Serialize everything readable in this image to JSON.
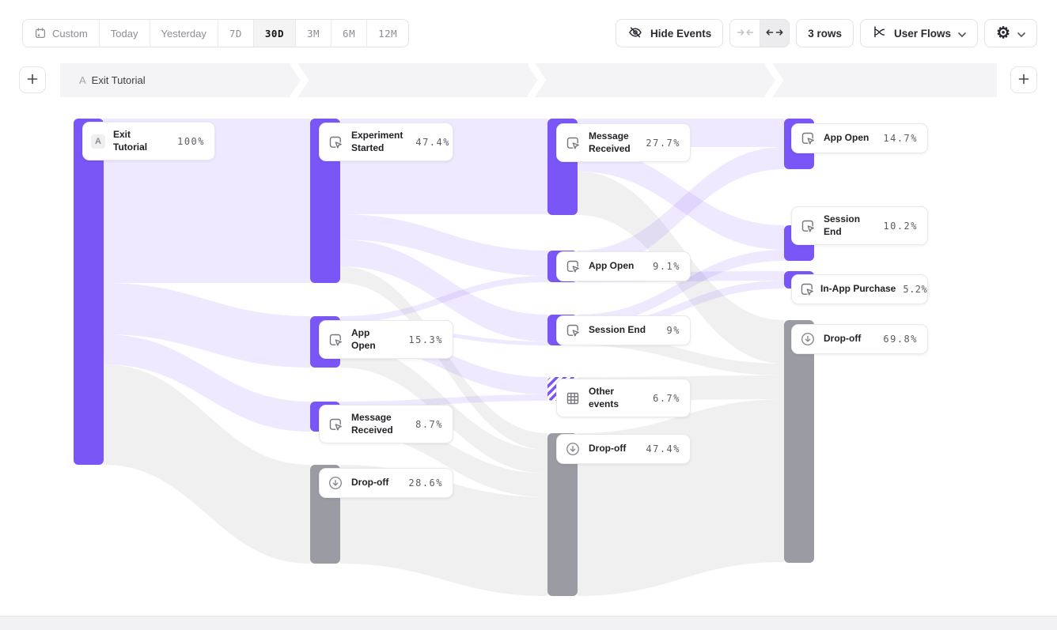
{
  "toolbar": {
    "date_ranges": [
      "Custom",
      "Today",
      "Yesterday",
      "7D",
      "30D",
      "3M",
      "6M",
      "12M"
    ],
    "active_range": "30D",
    "hide_events_label": "Hide Events",
    "rows_label": "3 rows",
    "view_label": "User Flows"
  },
  "flow_header": {
    "step_label": "A",
    "step_title": "Exit Tutorial"
  },
  "colors": {
    "accent": "#7A56F6",
    "dropoff": "#9B9BA3",
    "ribbon_purple": "#EAE5FC",
    "ribbon_gray": "#F1F0F4"
  },
  "chart_data": {
    "type": "sankey",
    "unit": "percent of users",
    "columns": [
      {
        "nodes": [
          {
            "label": "Exit Tutorial",
            "value": "100%",
            "kind": "start"
          }
        ]
      },
      {
        "nodes": [
          {
            "label": "Experiment Started",
            "value": "47.4%",
            "kind": "event"
          },
          {
            "label": "App Open",
            "value": "15.3%",
            "kind": "event"
          },
          {
            "label": "Message Received",
            "value": "8.7%",
            "kind": "event"
          },
          {
            "label": "Drop-off",
            "value": "28.6%",
            "kind": "dropoff"
          }
        ]
      },
      {
        "nodes": [
          {
            "label": "Message Received",
            "value": "27.7%",
            "kind": "event"
          },
          {
            "label": "App Open",
            "value": "9.1%",
            "kind": "event"
          },
          {
            "label": "Session End",
            "value": "9%",
            "kind": "event"
          },
          {
            "label": "Other events",
            "value": "6.7%",
            "kind": "other"
          },
          {
            "label": "Drop-off",
            "value": "47.4%",
            "kind": "dropoff"
          }
        ]
      },
      {
        "nodes": [
          {
            "label": "App Open",
            "value": "14.7%",
            "kind": "event"
          },
          {
            "label": "Session End",
            "value": "10.2%",
            "kind": "event"
          },
          {
            "label": "In-App Purchase",
            "value": "5.2%",
            "kind": "event"
          },
          {
            "label": "Drop-off",
            "value": "69.8%",
            "kind": "dropoff"
          }
        ]
      }
    ]
  }
}
